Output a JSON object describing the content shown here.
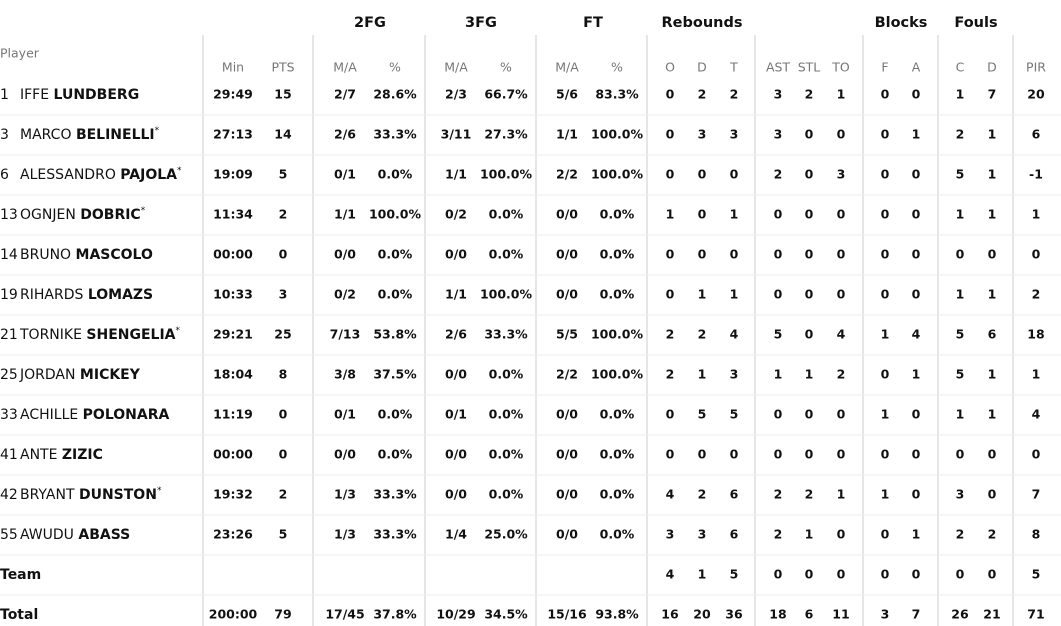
{
  "header": {
    "player": "Player",
    "groups": [
      "2FG",
      "3FG",
      "FT",
      "Rebounds",
      "Blocks",
      "Fouls"
    ],
    "columns": [
      "Min",
      "PTS",
      "M/A",
      "%",
      "M/A",
      "%",
      "M/A",
      "%",
      "O",
      "D",
      "T",
      "AST",
      "STL",
      "TO",
      "F",
      "A",
      "C",
      "D",
      "PIR"
    ]
  },
  "rows": [
    {
      "number": "1",
      "first": "IFFE",
      "last": "LUNDBERG",
      "stats": [
        "29:49",
        "15",
        "2/7",
        "28.6%",
        "2/3",
        "66.7%",
        "5/6",
        "83.3%",
        "0",
        "2",
        "2",
        "3",
        "2",
        "1",
        "0",
        "0",
        "1",
        "7",
        "20"
      ]
    },
    {
      "number": "3",
      "first": "MARCO",
      "last": "BELINELLI",
      "marker": "*",
      "stats": [
        "27:13",
        "14",
        "2/6",
        "33.3%",
        "3/11",
        "27.3%",
        "1/1",
        "100.0%",
        "0",
        "3",
        "3",
        "3",
        "0",
        "0",
        "0",
        "1",
        "2",
        "1",
        "6"
      ]
    },
    {
      "number": "6",
      "first": "ALESSANDRO",
      "last": "PAJOLA",
      "marker": "*",
      "stats": [
        "19:09",
        "5",
        "0/1",
        "0.0%",
        "1/1",
        "100.0%",
        "2/2",
        "100.0%",
        "0",
        "0",
        "0",
        "2",
        "0",
        "3",
        "0",
        "0",
        "5",
        "1",
        "-1"
      ]
    },
    {
      "number": "13",
      "first": "OGNJEN",
      "last": "DOBRIC",
      "marker": "*",
      "stats": [
        "11:34",
        "2",
        "1/1",
        "100.0%",
        "0/2",
        "0.0%",
        "0/0",
        "0.0%",
        "1",
        "0",
        "1",
        "0",
        "0",
        "0",
        "0",
        "0",
        "1",
        "1",
        "1"
      ]
    },
    {
      "number": "14",
      "first": "BRUNO",
      "last": "MASCOLO",
      "stats": [
        "00:00",
        "0",
        "0/0",
        "0.0%",
        "0/0",
        "0.0%",
        "0/0",
        "0.0%",
        "0",
        "0",
        "0",
        "0",
        "0",
        "0",
        "0",
        "0",
        "0",
        "0",
        "0"
      ]
    },
    {
      "number": "19",
      "first": "RIHARDS",
      "last": "LOMAZS",
      "stats": [
        "10:33",
        "3",
        "0/2",
        "0.0%",
        "1/1",
        "100.0%",
        "0/0",
        "0.0%",
        "0",
        "1",
        "1",
        "0",
        "0",
        "0",
        "0",
        "0",
        "1",
        "1",
        "2"
      ]
    },
    {
      "number": "21",
      "first": "TORNIKE",
      "last": "SHENGELIA",
      "marker": "*",
      "stats": [
        "29:21",
        "25",
        "7/13",
        "53.8%",
        "2/6",
        "33.3%",
        "5/5",
        "100.0%",
        "2",
        "2",
        "4",
        "5",
        "0",
        "4",
        "1",
        "4",
        "5",
        "6",
        "18"
      ]
    },
    {
      "number": "25",
      "first": "JORDAN",
      "last": "MICKEY",
      "stats": [
        "18:04",
        "8",
        "3/8",
        "37.5%",
        "0/0",
        "0.0%",
        "2/2",
        "100.0%",
        "2",
        "1",
        "3",
        "1",
        "1",
        "2",
        "0",
        "1",
        "5",
        "1",
        "1"
      ]
    },
    {
      "number": "33",
      "first": "ACHILLE",
      "last": "POLONARA",
      "stats": [
        "11:19",
        "0",
        "0/1",
        "0.0%",
        "0/1",
        "0.0%",
        "0/0",
        "0.0%",
        "0",
        "5",
        "5",
        "0",
        "0",
        "0",
        "1",
        "0",
        "1",
        "1",
        "4"
      ]
    },
    {
      "number": "41",
      "first": "ANTE",
      "last": "ZIZIC",
      "stats": [
        "00:00",
        "0",
        "0/0",
        "0.0%",
        "0/0",
        "0.0%",
        "0/0",
        "0.0%",
        "0",
        "0",
        "0",
        "0",
        "0",
        "0",
        "0",
        "0",
        "0",
        "0",
        "0"
      ]
    },
    {
      "number": "42",
      "first": "BRYANT",
      "last": "DUNSTON",
      "marker": "*",
      "stats": [
        "19:32",
        "2",
        "1/3",
        "33.3%",
        "0/0",
        "0.0%",
        "0/0",
        "0.0%",
        "4",
        "2",
        "6",
        "2",
        "2",
        "1",
        "1",
        "0",
        "3",
        "0",
        "7"
      ]
    },
    {
      "number": "55",
      "first": "AWUDU",
      "last": "ABASS",
      "stats": [
        "23:26",
        "5",
        "1/3",
        "33.3%",
        "1/4",
        "25.0%",
        "0/0",
        "0.0%",
        "3",
        "3",
        "6",
        "2",
        "1",
        "0",
        "0",
        "1",
        "2",
        "2",
        "8"
      ]
    },
    {
      "label": "Team",
      "stats": [
        null,
        null,
        null,
        null,
        null,
        null,
        null,
        null,
        "4",
        "1",
        "5",
        "0",
        "0",
        "0",
        "0",
        "0",
        "0",
        "0",
        "5"
      ]
    },
    {
      "label": "Total",
      "stats": [
        "200:00",
        "79",
        "17/45",
        "37.8%",
        "10/29",
        "34.5%",
        "15/16",
        "93.8%",
        "16",
        "20",
        "36",
        "18",
        "6",
        "11",
        "3",
        "7",
        "26",
        "21",
        "71"
      ]
    }
  ]
}
